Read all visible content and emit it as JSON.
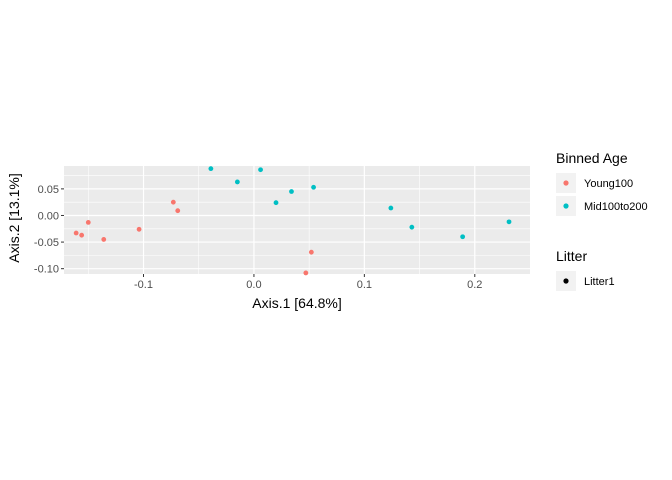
{
  "chart_data": {
    "type": "scatter",
    "xlabel": "Axis.1   [64.8%]",
    "ylabel": "Axis.2   [13.1%]",
    "xlim": [
      -0.172,
      0.25
    ],
    "ylim": [
      -0.11,
      0.093
    ],
    "xticks": [
      -0.1,
      0.0,
      0.1,
      0.2
    ],
    "xtick_labels": [
      "-0.1",
      "0.0",
      "0.1",
      "0.2"
    ],
    "yticks": [
      -0.1,
      -0.05,
      0.0,
      0.05
    ],
    "ytick_labels": [
      "-0.10",
      "-0.05",
      "0.00",
      "0.05"
    ],
    "grid": true,
    "legend_placement": "right",
    "panel_background": "#EBEBEB",
    "series": [
      {
        "name": "Young100",
        "color": "#F8766D",
        "points": [
          {
            "x": -0.161,
            "y": -0.033
          },
          {
            "x": -0.156,
            "y": -0.037
          },
          {
            "x": -0.15,
            "y": -0.013
          },
          {
            "x": -0.136,
            "y": -0.045
          },
          {
            "x": -0.104,
            "y": -0.026
          },
          {
            "x": -0.073,
            "y": 0.025
          },
          {
            "x": -0.069,
            "y": 0.009
          },
          {
            "x": 0.047,
            "y": -0.108
          },
          {
            "x": 0.052,
            "y": -0.069
          }
        ]
      },
      {
        "name": "Mid100to200",
        "color": "#00BFC4",
        "points": [
          {
            "x": -0.039,
            "y": 0.088
          },
          {
            "x": -0.015,
            "y": 0.063
          },
          {
            "x": 0.006,
            "y": 0.086
          },
          {
            "x": 0.02,
            "y": 0.024
          },
          {
            "x": 0.034,
            "y": 0.045
          },
          {
            "x": 0.054,
            "y": 0.053
          },
          {
            "x": 0.124,
            "y": 0.014
          },
          {
            "x": 0.143,
            "y": -0.022
          },
          {
            "x": 0.189,
            "y": -0.04
          },
          {
            "x": 0.231,
            "y": -0.012
          }
        ]
      }
    ],
    "legends": [
      {
        "title": "Binned Age",
        "entries": [
          {
            "label": "Young100",
            "color": "#F8766D"
          },
          {
            "label": "Mid100to200",
            "color": "#00BFC4"
          }
        ]
      },
      {
        "title": "Litter",
        "entries": [
          {
            "label": "Litter1",
            "color": "#000000"
          }
        ]
      }
    ]
  }
}
